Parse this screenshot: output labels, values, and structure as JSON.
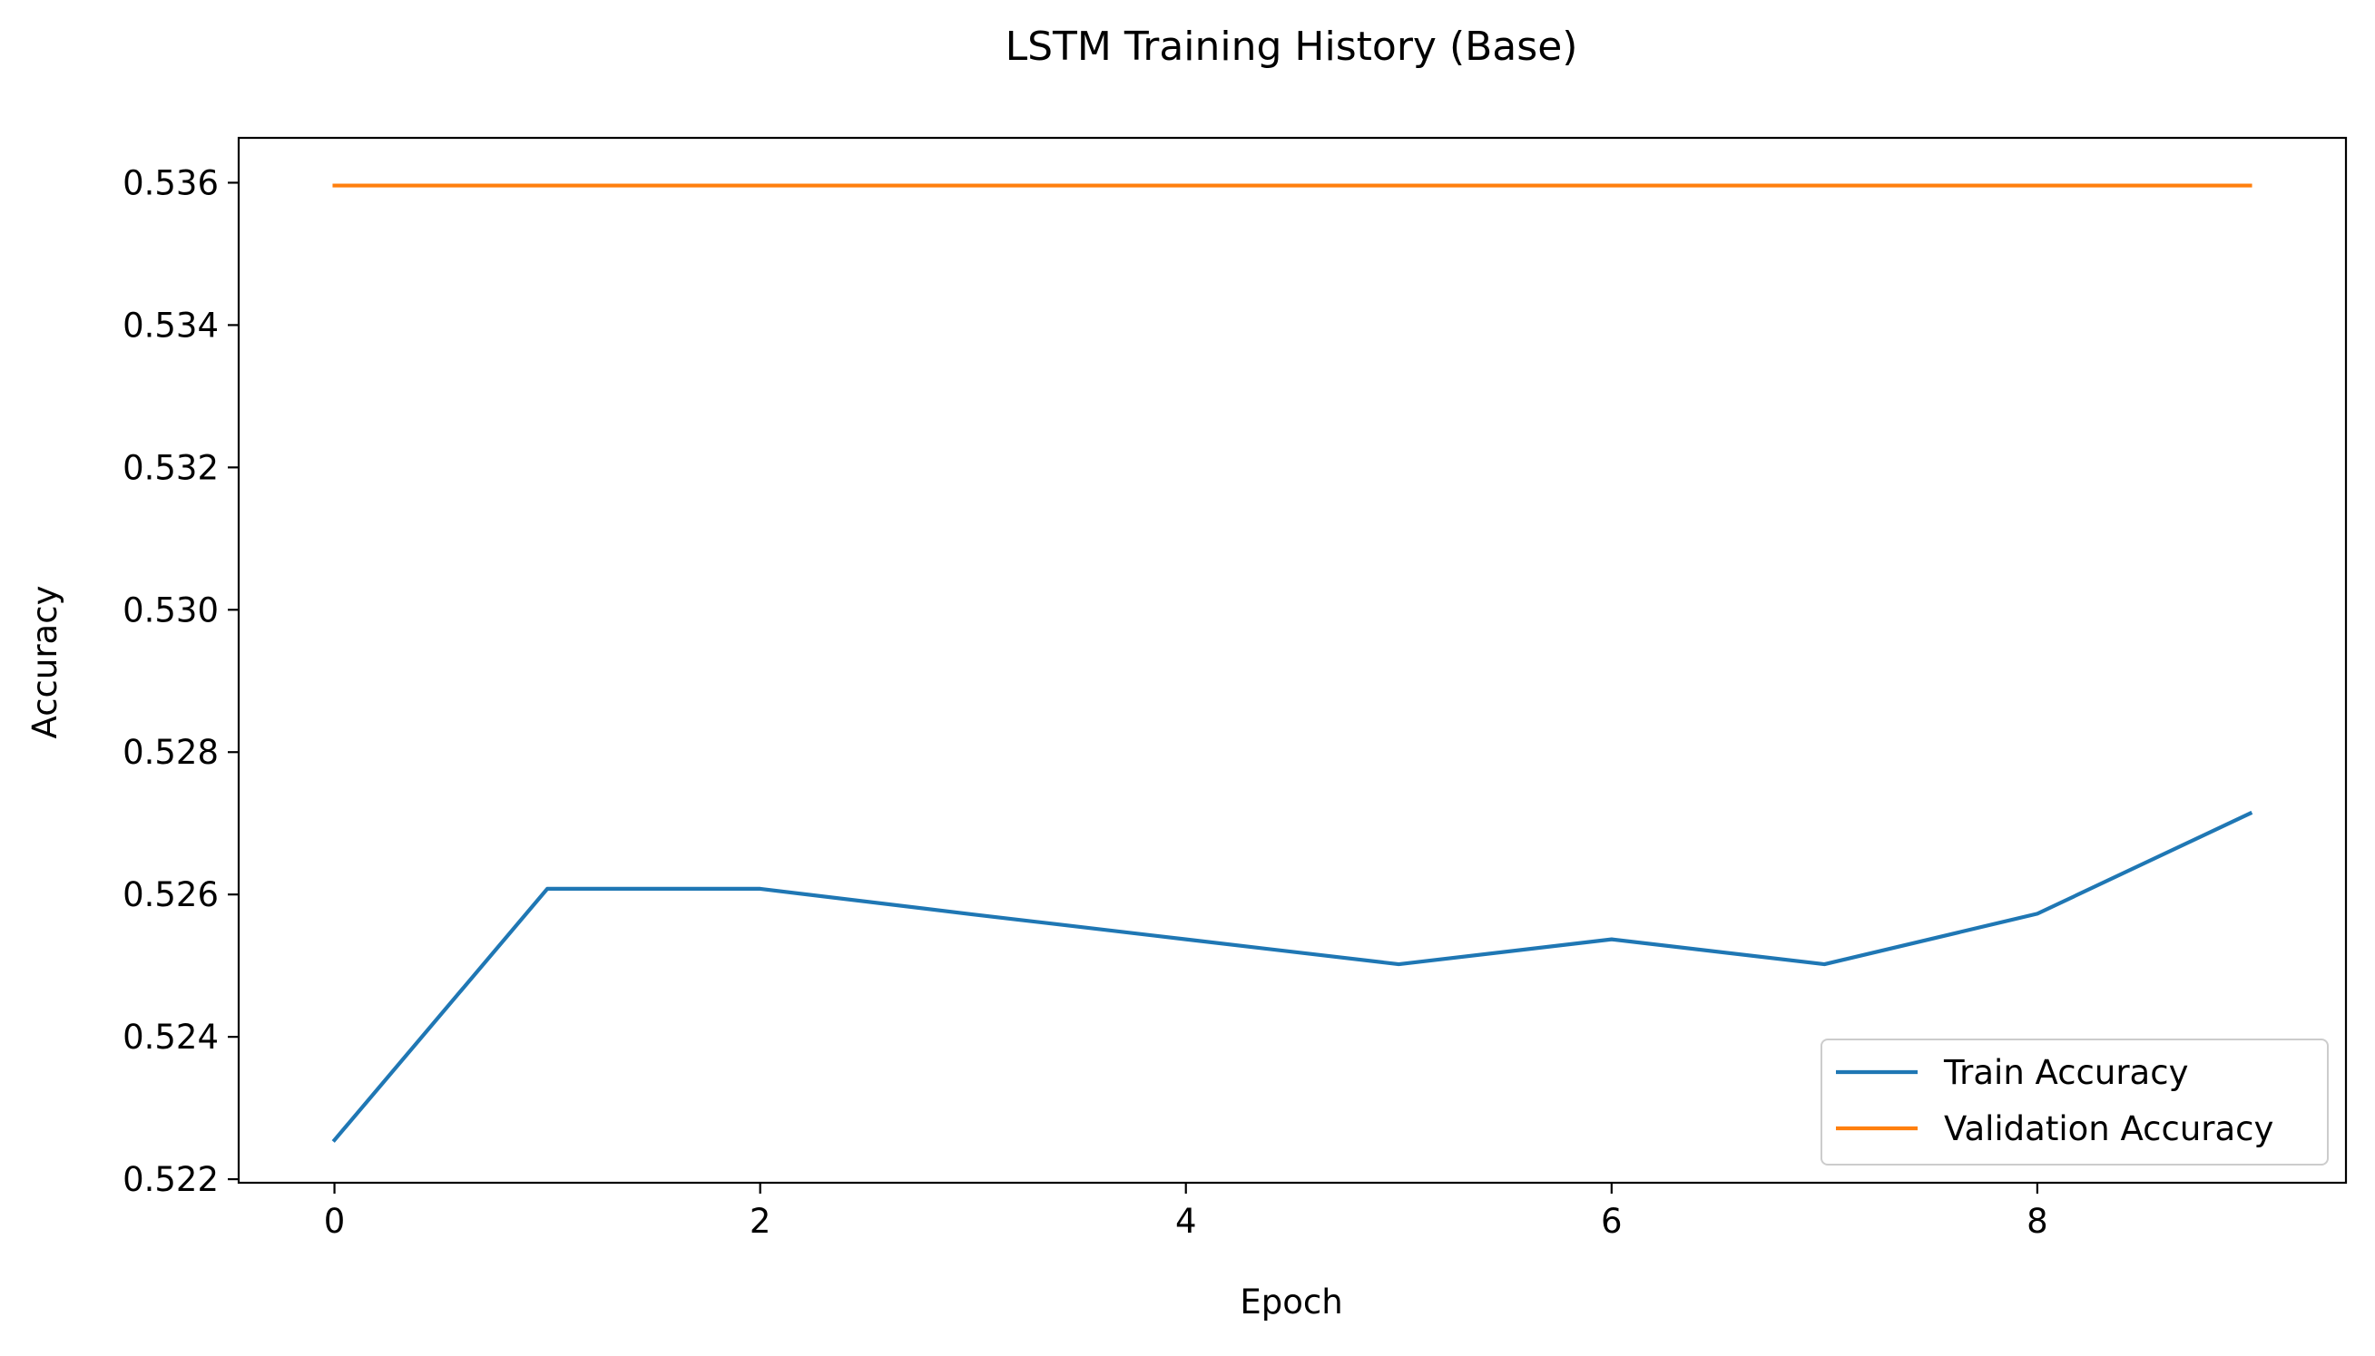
{
  "chart_data": {
    "type": "line",
    "title": "LSTM Training History (Base)",
    "xlabel": "Epoch",
    "ylabel": "Accuracy",
    "x": [
      0,
      1,
      2,
      3,
      4,
      5,
      6,
      7,
      8,
      9
    ],
    "xlim": [
      -0.45,
      9.45
    ],
    "ylim": [
      0.52195,
      0.53663
    ],
    "xticks": [
      0,
      2,
      4,
      6,
      8
    ],
    "xtick_labels": [
      "0",
      "2",
      "4",
      "6",
      "8"
    ],
    "yticks": [
      0.522,
      0.524,
      0.526,
      0.528,
      0.53,
      0.532,
      0.534,
      0.536
    ],
    "ytick_labels": [
      "0.522",
      "0.524",
      "0.526",
      "0.528",
      "0.530",
      "0.532",
      "0.534",
      "0.536"
    ],
    "grid": false,
    "legend_position": "lower-right",
    "series": [
      {
        "name": "Train Accuracy",
        "color": "#1f77b4",
        "values": [
          0.52255,
          0.52608,
          0.52608,
          0.52572,
          0.52537,
          0.52502,
          0.52537,
          0.52502,
          0.52573,
          0.52714
        ]
      },
      {
        "name": "Validation Accuracy",
        "color": "#ff7f0e",
        "values": [
          0.53596,
          0.53596,
          0.53596,
          0.53596,
          0.53596,
          0.53596,
          0.53596,
          0.53596,
          0.53596,
          0.53596
        ]
      }
    ]
  }
}
